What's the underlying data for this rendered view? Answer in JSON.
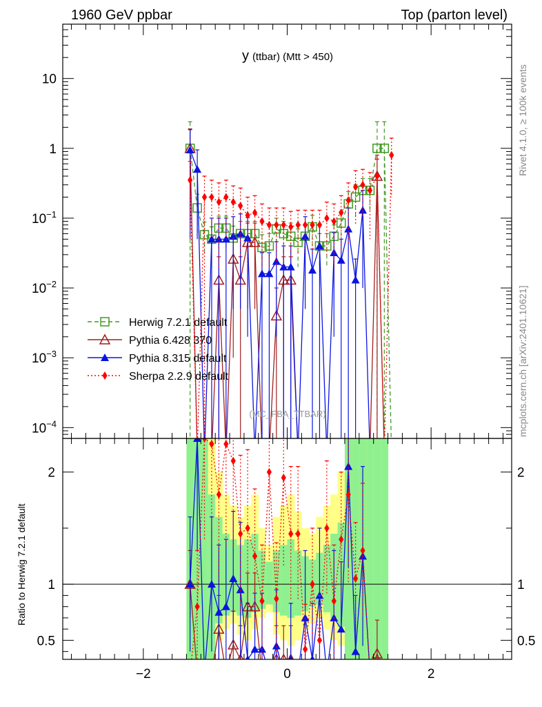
{
  "header": {
    "left": "1960 GeV ppbar",
    "right": "Top (parton level)"
  },
  "side": {
    "rivet": "Rivet 4.1.0, ≥ 100k events",
    "mcplots": "mcplots.cern.ch [arXiv:2401.10621]"
  },
  "chart_data": {
    "type": "scatter",
    "title_main": "y",
    "title_sub": "(ttbar) (Mtt > 450)",
    "watermark": "(MC_FBA_TTBAR)",
    "xlim": [
      -3.12,
      3.12
    ],
    "main": {
      "yscale": "log",
      "ylim": [
        7e-05,
        60
      ],
      "y_ticks": [
        {
          "value": 10,
          "base": "10",
          "exp": ""
        },
        {
          "value": 1,
          "base": "1",
          "exp": ""
        },
        {
          "value": 0.1,
          "base": "10",
          "exp": "−1"
        },
        {
          "value": 0.01,
          "base": "10",
          "exp": "−2"
        },
        {
          "value": 0.001,
          "base": "10",
          "exp": "−3"
        },
        {
          "value": 0.0001,
          "base": "10",
          "exp": "−4"
        }
      ]
    },
    "ratio": {
      "ylabel": "Ratio to Herwig 7.2.1 default",
      "ylim": [
        0.33,
        2.3
      ],
      "y_ticks": [
        {
          "value": 2,
          "label": "2"
        },
        {
          "value": 1,
          "label": "1"
        },
        {
          "value": 0.5,
          "label": "0.5"
        }
      ]
    },
    "x_ticks": [
      {
        "value": -2,
        "label": "−2"
      },
      {
        "value": 0,
        "label": "0"
      },
      {
        "value": 2,
        "label": "2"
      }
    ],
    "x": [
      -1.35,
      -1.25,
      -1.15,
      -1.05,
      -0.95,
      -0.85,
      -0.75,
      -0.65,
      -0.55,
      -0.45,
      -0.35,
      -0.25,
      -0.15,
      -0.05,
      0.05,
      0.15,
      0.25,
      0.35,
      0.45,
      0.55,
      0.65,
      0.75,
      0.85,
      0.95,
      1.05,
      1.15,
      1.25,
      1.35,
      1.45
    ],
    "band": {
      "yellow_lo": [
        0.33,
        0.33,
        0.33,
        0.33,
        0.5,
        0.6,
        0.65,
        0.55,
        0.5,
        0.6,
        0.7,
        0.75,
        0.55,
        0.5,
        0.45,
        0.5,
        0.6,
        0.65,
        0.7,
        0.6,
        0.5,
        0.45,
        0.33,
        0.33,
        0.33,
        0.33,
        0.33,
        0.33,
        null
      ],
      "yellow_hi": [
        2.3,
        2.3,
        2.3,
        2.3,
        2.0,
        1.8,
        1.7,
        1.6,
        1.7,
        1.8,
        1.5,
        1.35,
        1.6,
        1.7,
        1.8,
        1.65,
        1.5,
        1.45,
        1.6,
        1.7,
        1.8,
        2.0,
        2.3,
        2.3,
        2.3,
        2.3,
        2.3,
        2.3,
        null
      ],
      "green_lo": [
        0.33,
        0.33,
        0.33,
        0.33,
        0.65,
        0.72,
        0.75,
        0.72,
        0.7,
        0.75,
        0.78,
        0.82,
        0.75,
        0.72,
        0.7,
        0.72,
        0.76,
        0.8,
        0.82,
        0.75,
        0.7,
        0.62,
        0.33,
        0.33,
        0.33,
        0.33,
        0.33,
        0.33,
        null
      ],
      "green_hi": [
        2.3,
        2.3,
        2.3,
        1.8,
        1.6,
        1.45,
        1.4,
        1.35,
        1.4,
        1.45,
        1.3,
        1.2,
        1.3,
        1.35,
        1.4,
        1.3,
        1.25,
        1.22,
        1.28,
        1.35,
        1.45,
        1.55,
        2.3,
        2.3,
        2.3,
        2.3,
        2.3,
        2.3,
        null
      ]
    },
    "series": [
      {
        "name": "Herwig 7.2.1 default",
        "color": "#3f9a20",
        "marker": "square-open",
        "line": "dashed",
        "values": [
          1.0,
          0.14,
          0.058,
          0.05,
          0.072,
          0.072,
          0.052,
          0.06,
          0.06,
          0.06,
          0.038,
          0.04,
          0.07,
          0.06,
          0.055,
          0.045,
          0.055,
          0.075,
          0.04,
          0.04,
          0.055,
          0.085,
          0.16,
          0.2,
          0.25,
          0.25,
          1.0,
          1.0,
          null
        ],
        "errors": [
          1.4,
          0.08,
          0.03,
          0.025,
          0.035,
          0.035,
          0.025,
          0.03,
          0.03,
          0.03,
          0.02,
          0.02,
          0.03,
          0.03,
          0.03,
          0.025,
          0.025,
          0.035,
          0.02,
          0.02,
          0.025,
          0.04,
          0.08,
          0.1,
          0.12,
          0.12,
          1.4,
          1.4,
          null
        ],
        "ratio": [
          1.0,
          1.0,
          1.0,
          1.0,
          1.0,
          1.0,
          1.0,
          1.0,
          1.0,
          1.0,
          1.0,
          1.0,
          1.0,
          1.0,
          1.0,
          1.0,
          1.0,
          1.0,
          1.0,
          1.0,
          1.0,
          1.0,
          1.0,
          1.0,
          1.0,
          1.0,
          1.0,
          1.0,
          null
        ]
      },
      {
        "name": "Pythia 6.428 370",
        "color": "#a01e1e",
        "marker": "triangle-open",
        "line": "solid",
        "values": [
          1.0,
          null,
          null,
          null,
          0.013,
          null,
          0.026,
          0.013,
          0.045,
          0.045,
          null,
          null,
          0.004,
          0.013,
          0.013,
          null,
          null,
          null,
          null,
          null,
          null,
          null,
          null,
          null,
          null,
          null,
          0.4,
          null,
          null
        ],
        "errors": [
          0.9,
          null,
          null,
          null,
          0.015,
          null,
          0.025,
          0.015,
          0.04,
          0.04,
          null,
          null,
          0.006,
          0.015,
          0.015,
          null,
          null,
          null,
          null,
          null,
          null,
          null,
          null,
          null,
          null,
          null,
          0.4,
          null,
          null
        ],
        "ratio": [
          1.0,
          null,
          null,
          null,
          0.6,
          null,
          0.46,
          0.33,
          0.8,
          0.8,
          null,
          null,
          0.33,
          0.33,
          0.33,
          null,
          null,
          null,
          null,
          null,
          null,
          null,
          null,
          null,
          null,
          null,
          0.38,
          null,
          null
        ]
      },
      {
        "name": "Pythia 8.315 default",
        "color": "#0a14e0",
        "marker": "triangle-filled",
        "line": "solid",
        "values": [
          0.95,
          0.5,
          null,
          0.05,
          0.05,
          0.05,
          0.055,
          0.06,
          0.052,
          null,
          0.016,
          0.016,
          0.024,
          0.02,
          0.02,
          null,
          0.055,
          0.018,
          0.04,
          null,
          0.032,
          0.025,
          0.07,
          0.013,
          0.13,
          null,
          null,
          null,
          null
        ],
        "errors": [
          0.9,
          0.45,
          null,
          0.05,
          0.05,
          0.05,
          0.05,
          0.055,
          0.05,
          null,
          0.016,
          0.016,
          0.022,
          0.02,
          0.02,
          null,
          0.05,
          0.018,
          0.04,
          null,
          0.03,
          0.025,
          0.07,
          0.013,
          0.12,
          null,
          null,
          null,
          null
        ],
        "ratio": [
          1.0,
          2.3,
          null,
          1.0,
          0.75,
          0.8,
          1.05,
          0.95,
          0.33,
          0.42,
          0.42,
          null,
          0.45,
          null,
          0.33,
          null,
          0.7,
          0.33,
          0.9,
          null,
          0.7,
          0.6,
          2.05,
          0.4,
          1.25,
          null,
          null,
          null,
          null
        ],
        "ratio_errors": [
          0.6,
          1.0,
          null,
          0.6,
          0.6,
          0.6,
          0.6,
          0.6,
          0.5,
          0.5,
          0.5,
          null,
          0.5,
          null,
          0.5,
          null,
          0.6,
          0.5,
          0.6,
          null,
          0.6,
          0.6,
          0.9,
          0.5,
          0.8,
          null,
          null,
          null,
          null
        ]
      },
      {
        "name": "Sherpa 2.2.9 default",
        "color": "#ff0000",
        "marker": "diamond-filled",
        "line": "dotted",
        "values": [
          0.35,
          null,
          0.2,
          0.2,
          0.17,
          0.2,
          0.17,
          0.15,
          0.11,
          0.12,
          0.09,
          0.08,
          0.08,
          0.08,
          0.075,
          0.08,
          0.08,
          0.08,
          0.08,
          0.1,
          0.09,
          0.12,
          0.18,
          0.28,
          0.3,
          0.25,
          0.4,
          null,
          0.8
        ],
        "errors": [
          0.3,
          null,
          0.2,
          0.15,
          0.15,
          0.15,
          0.12,
          0.12,
          0.09,
          0.09,
          0.07,
          0.06,
          0.06,
          0.06,
          0.05,
          0.05,
          0.05,
          0.05,
          0.05,
          0.07,
          0.07,
          0.09,
          0.14,
          0.2,
          0.2,
          0.2,
          0.3,
          null,
          0.6
        ],
        "ratio": [
          null,
          0.8,
          2.3,
          2.25,
          1.8,
          2.25,
          2.1,
          1.45,
          1.5,
          1.25,
          0.85,
          2.0,
          0.87,
          1.95,
          1.45,
          1.45,
          0.42,
          1.0,
          0.5,
          1.5,
          0.85,
          1.4,
          1.8,
          1.05,
          1.3,
          null,
          null,
          null,
          null
        ],
        "ratio_errors": [
          null,
          0.5,
          0.9,
          0.9,
          0.8,
          0.9,
          0.8,
          0.7,
          0.7,
          0.6,
          0.5,
          0.8,
          0.5,
          0.8,
          0.6,
          0.6,
          0.4,
          0.5,
          0.4,
          0.6,
          0.5,
          0.6,
          0.8,
          0.5,
          0.6,
          null,
          null,
          null,
          null
        ]
      }
    ]
  }
}
